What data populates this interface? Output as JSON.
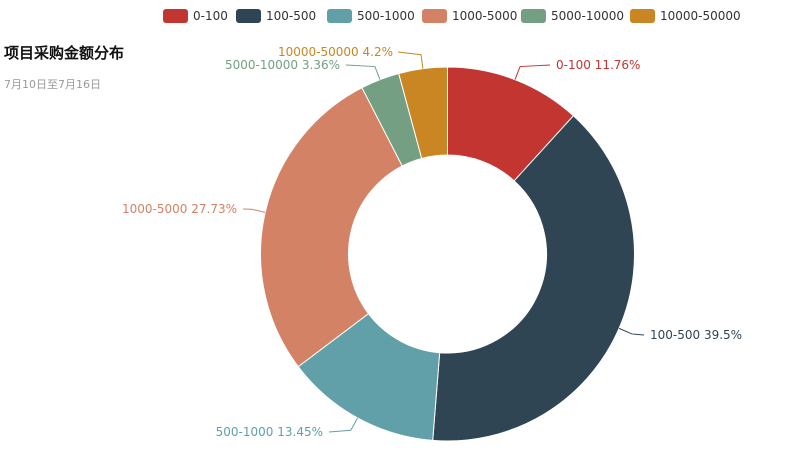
{
  "chart_data": {
    "type": "pie",
    "title": "项目采购金额分布",
    "subtitle": "7月10日至7月16日",
    "legend_position": "top",
    "slices": [
      {
        "name": "0-100",
        "value": 11.76,
        "label": "0-100 11.76%",
        "color": "#c23531"
      },
      {
        "name": "100-500",
        "value": 39.5,
        "label": "100-500 39.5%",
        "color": "#2f4554"
      },
      {
        "name": "500-1000",
        "value": 13.45,
        "label": "500-1000 13.45%",
        "color": "#61a0a8"
      },
      {
        "name": "1000-5000",
        "value": 27.73,
        "label": "1000-5000 27.73%",
        "color": "#d48265"
      },
      {
        "name": "5000-10000",
        "value": 3.36,
        "label": "5000-10000 3.36%",
        "color": "#749f83"
      },
      {
        "name": "10000-50000",
        "value": 4.2,
        "label": "10000-50000 4.2%",
        "color": "#ca8622"
      }
    ]
  }
}
